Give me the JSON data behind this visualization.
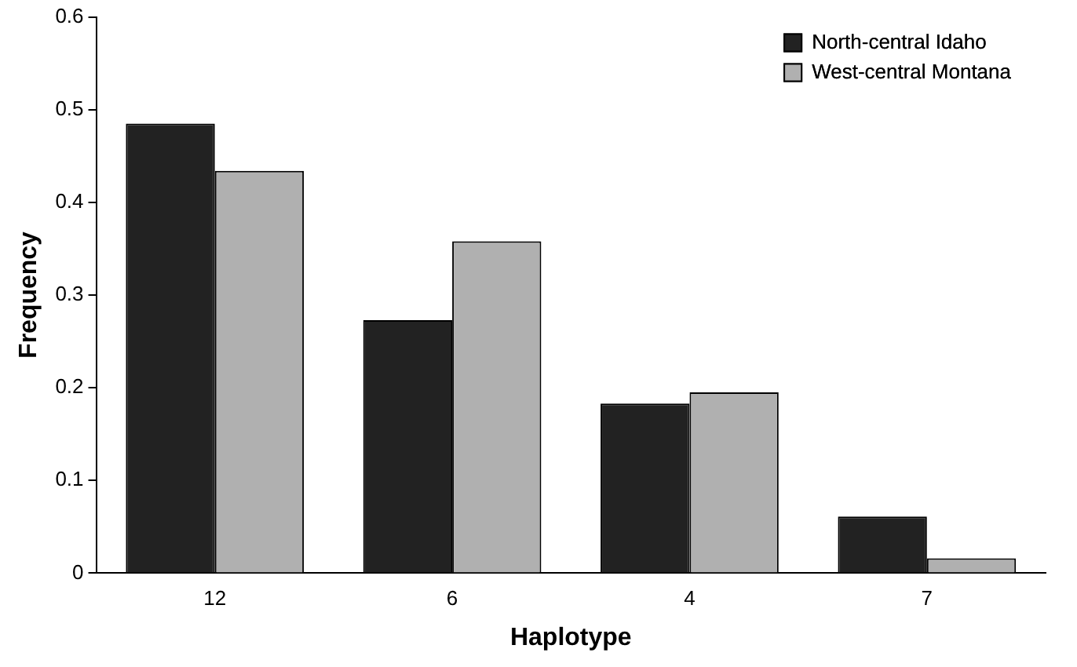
{
  "chart_data": {
    "type": "bar",
    "xlabel": "Haplotype",
    "ylabel": "Frequency",
    "categories": [
      "12",
      "6",
      "4",
      "7"
    ],
    "series": [
      {
        "name": "North-central Idaho",
        "color": "#222222",
        "values": [
          0.485,
          0.273,
          0.183,
          0.061
        ]
      },
      {
        "name": "West-central Montana",
        "color": "#b0b0b0",
        "values": [
          0.434,
          0.358,
          0.195,
          0.016
        ]
      }
    ],
    "ylim": [
      0,
      0.6
    ],
    "yticks": [
      0,
      0.1,
      0.2,
      0.3,
      0.4,
      0.5,
      0.6
    ],
    "grid": false,
    "legend": "top right"
  }
}
